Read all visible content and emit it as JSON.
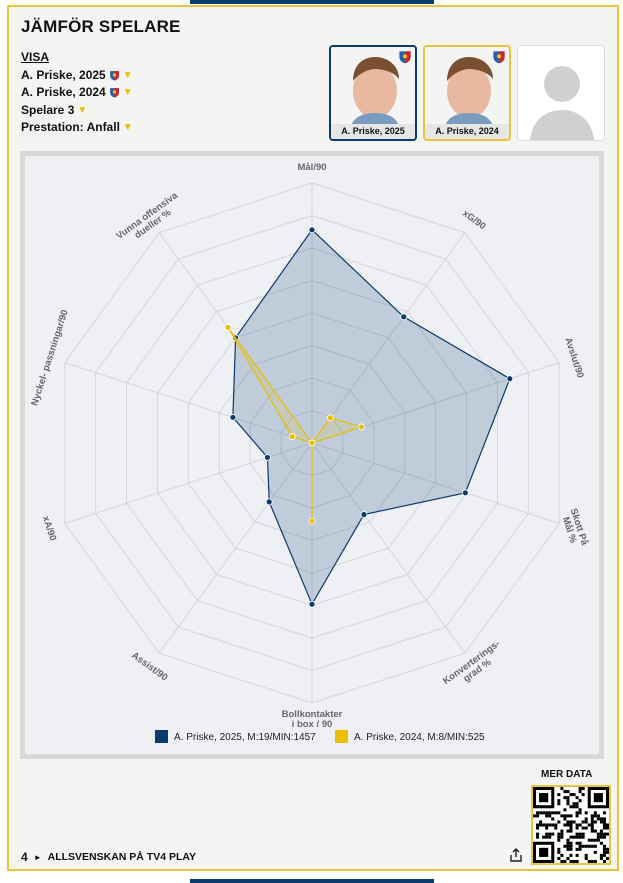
{
  "header": {
    "title": "JÄMFÖR SPELARE",
    "visa_label": "VISA",
    "selectors": [
      {
        "label": "A. Priske, 2025",
        "badge": true
      },
      {
        "label": "A. Priske, 2024",
        "badge": true
      },
      {
        "label": "Spelare 3",
        "badge": false
      },
      {
        "label": "Prestation: Anfall",
        "badge": false
      }
    ]
  },
  "player_cards": [
    {
      "caption": "A. Priske, 2025"
    },
    {
      "caption": "A. Priske, 2024"
    },
    {
      "caption": ""
    }
  ],
  "chart_data": {
    "type": "radar",
    "axes": [
      "Mål/90",
      "xG/90",
      "Avslut/90",
      "Skott På Mål %",
      "Konverterings- grad %",
      "Bollkontakter i box / 90",
      "Assist/90",
      "xA/90",
      "Nyckel- passningar/90",
      "Vunna offensiva dueller %"
    ],
    "rings": 8,
    "range": [
      0,
      1
    ],
    "series": [
      {
        "name": "A. Priske, 2025, M:19/MIN:1457",
        "color": "#0b3a6e",
        "values": [
          0.82,
          0.6,
          0.8,
          0.62,
          0.34,
          0.62,
          0.28,
          0.18,
          0.32,
          0.5
        ]
      },
      {
        "name": "A. Priske, 2024, M:8/MIN:525",
        "color": "#e8c000",
        "values": [
          0.0,
          0.12,
          0.2,
          0.0,
          0.0,
          0.3,
          0.0,
          0.0,
          0.08,
          0.55
        ]
      }
    ],
    "legend": "bottom"
  },
  "colors": {
    "accent": "#e8c53c",
    "navy": "#0b3a6e",
    "yellow": "#e8c000"
  },
  "footer": {
    "mer_data": "MER DATA",
    "page_num": "4",
    "link_text": "ALLSVENSKAN PÅ TV4 PLAY"
  }
}
